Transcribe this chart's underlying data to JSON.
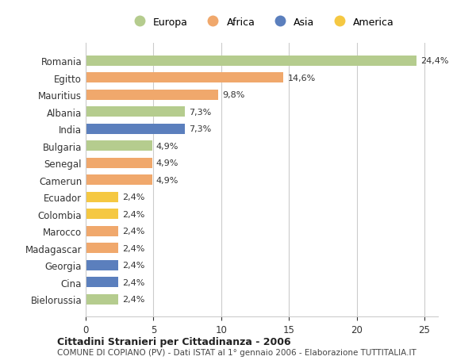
{
  "countries": [
    "Romania",
    "Egitto",
    "Mauritius",
    "Albania",
    "India",
    "Bulgaria",
    "Senegal",
    "Camerun",
    "Ecuador",
    "Colombia",
    "Marocco",
    "Madagascar",
    "Georgia",
    "Cina",
    "Bielorussia"
  ],
  "values": [
    24.4,
    14.6,
    9.8,
    7.3,
    7.3,
    4.9,
    4.9,
    4.9,
    2.4,
    2.4,
    2.4,
    2.4,
    2.4,
    2.4,
    2.4
  ],
  "labels": [
    "24,4%",
    "14,6%",
    "9,8%",
    "7,3%",
    "7,3%",
    "4,9%",
    "4,9%",
    "4,9%",
    "2,4%",
    "2,4%",
    "2,4%",
    "2,4%",
    "2,4%",
    "2,4%",
    "2,4%"
  ],
  "continents": [
    "Europa",
    "Africa",
    "Africa",
    "Europa",
    "Asia",
    "Europa",
    "Africa",
    "Africa",
    "America",
    "America",
    "Africa",
    "Africa",
    "Asia",
    "Asia",
    "Europa"
  ],
  "continent_colors": {
    "Europa": "#b5cc8e",
    "Africa": "#f0a86c",
    "Asia": "#5b7fbd",
    "America": "#f5c842"
  },
  "legend_order": [
    "Europa",
    "Africa",
    "Asia",
    "America"
  ],
  "title": "Cittadini Stranieri per Cittadinanza - 2006",
  "subtitle": "COMUNE DI COPIANO (PV) - Dati ISTAT al 1° gennaio 2006 - Elaborazione TUTTITALIA.IT",
  "xlim": [
    0,
    26
  ],
  "xticks": [
    0,
    5,
    10,
    15,
    20,
    25
  ],
  "background_color": "#ffffff",
  "grid_color": "#cccccc",
  "bar_height": 0.6
}
